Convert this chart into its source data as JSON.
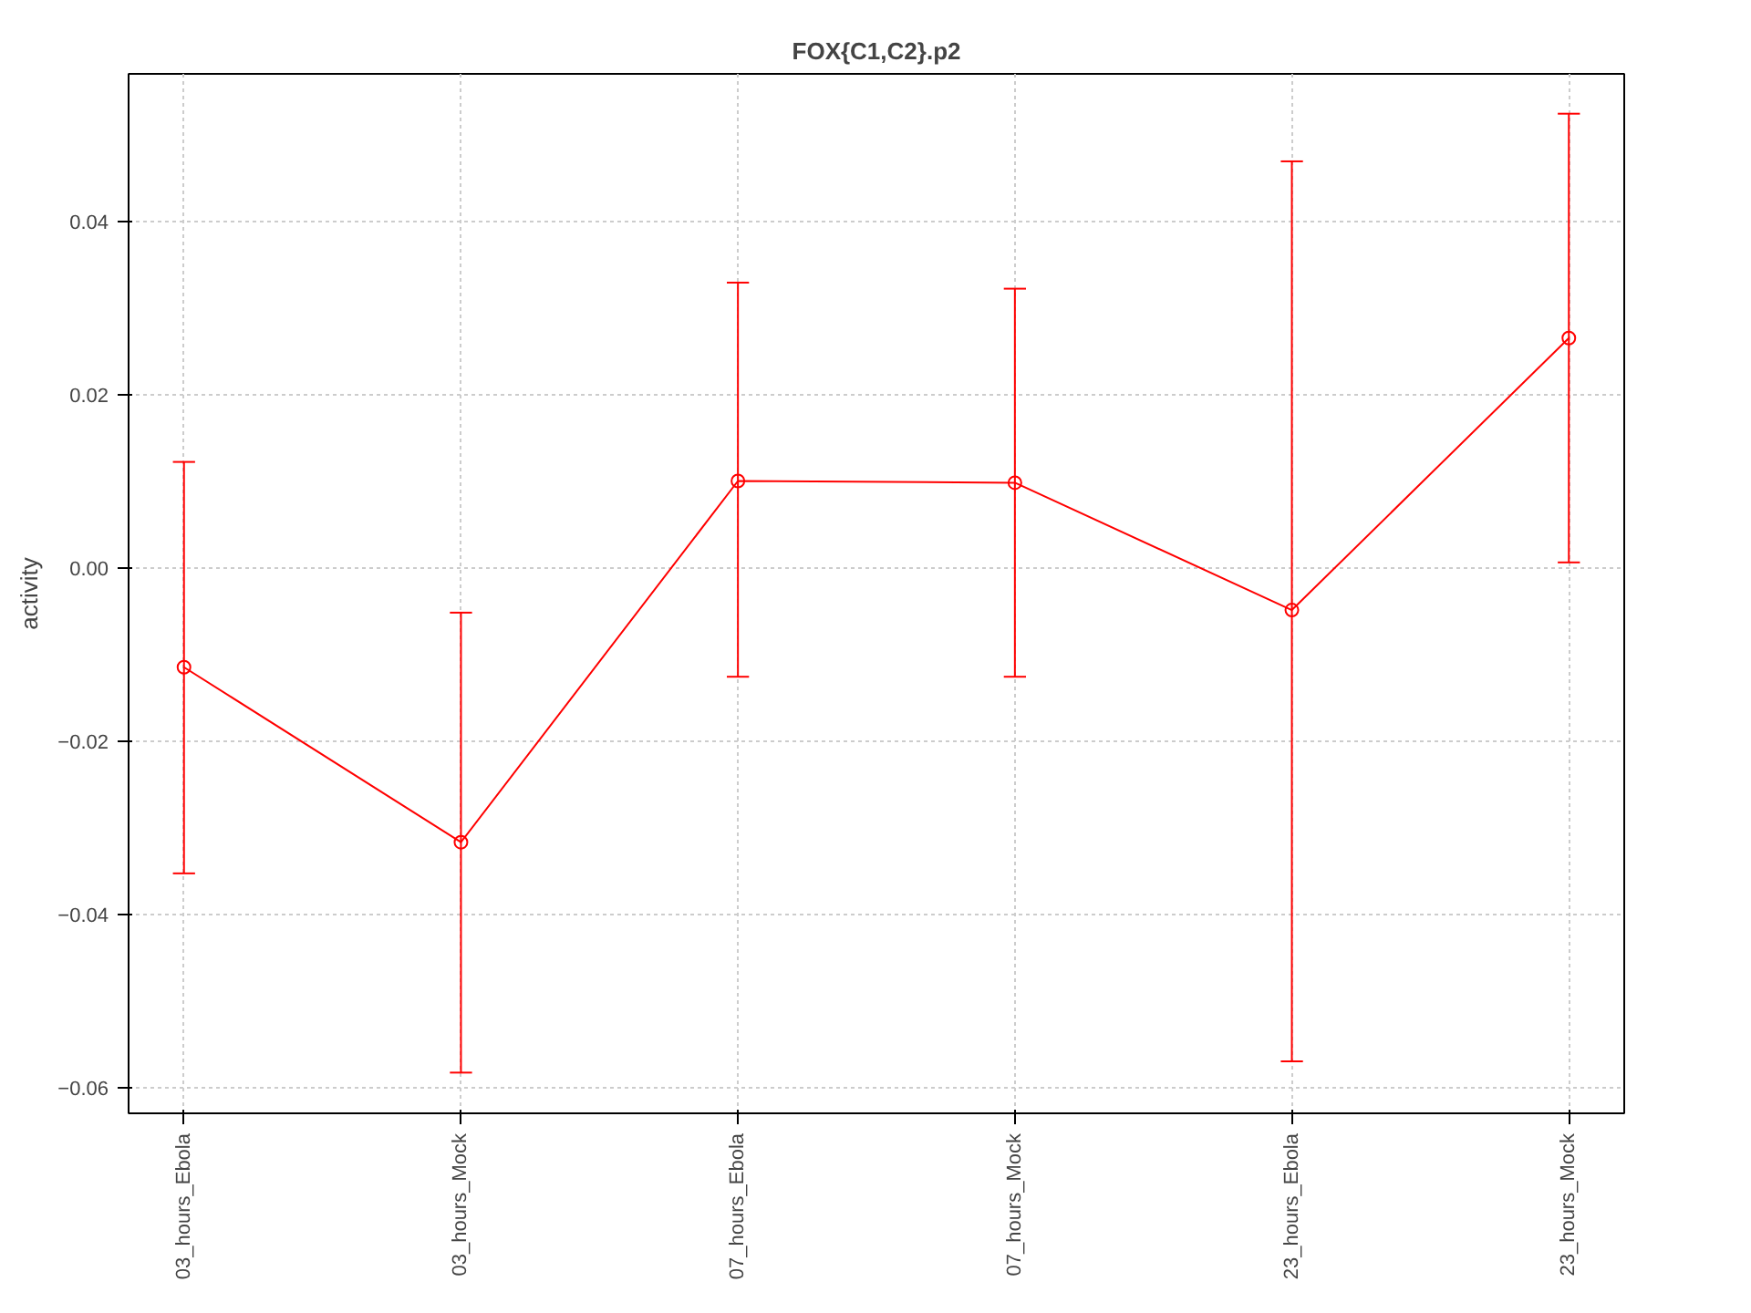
{
  "chart_data": {
    "type": "line",
    "title": "FOX{C1,C2}.p2",
    "ylabel": "activity",
    "categories": [
      "03_hours_Ebola",
      "03_hours_Mock",
      "07_hours_Ebola",
      "07_hours_Mock",
      "23_hours_Ebola",
      "23_hours_Mock"
    ],
    "series": [
      {
        "color": "#ff0000",
        "values": [
          -0.0114,
          -0.0316,
          0.0101,
          0.0099,
          -0.0048,
          0.0266
        ],
        "errors": [
          [
            -0.0352,
            0.0123
          ],
          [
            -0.0582,
            -0.0051
          ],
          [
            -0.0125,
            0.033
          ],
          [
            -0.0125,
            0.0323
          ],
          [
            -0.0569,
            0.047
          ],
          [
            0.0007,
            0.0525
          ]
        ]
      }
    ],
    "ylim": [
      -0.0629,
      0.0571
    ],
    "yticks": [
      -0.06,
      -0.04,
      -0.02,
      {
        "value": 0,
        "label": "0.00"
      },
      0.02,
      0.04
    ],
    "grid": true,
    "marker": "circle",
    "line_style": "solid"
  }
}
